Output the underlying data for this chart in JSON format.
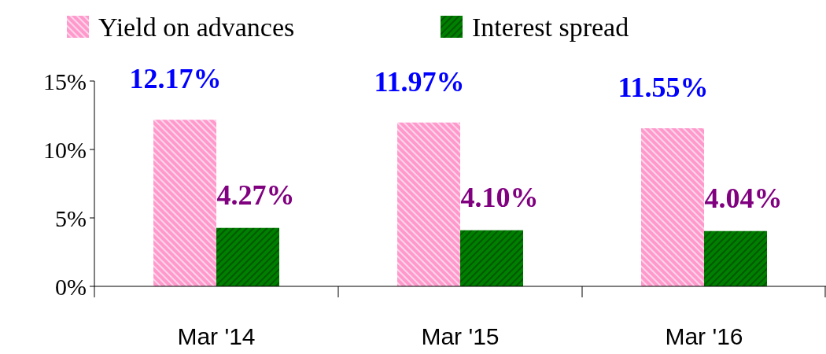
{
  "chart_data": {
    "type": "bar",
    "categories": [
      "Mar '14",
      "Mar '15",
      "Mar '16"
    ],
    "series": [
      {
        "name": "Yield on advances",
        "color": "#ff99cc",
        "values": [
          12.17,
          11.97,
          11.55
        ],
        "value_labels": [
          "12.17%",
          "11.97%",
          "11.55%"
        ]
      },
      {
        "name": "Interest spread",
        "color": "#008000",
        "values": [
          4.27,
          4.1,
          4.04
        ],
        "value_labels": [
          "4.27%",
          "4.10%",
          "4.04%"
        ]
      }
    ],
    "ylim": [
      0,
      15
    ],
    "yticks": [
      {
        "value": 0,
        "label": "0%"
      },
      {
        "value": 5,
        "label": "5%"
      },
      {
        "value": 10,
        "label": "10%"
      },
      {
        "value": 15,
        "label": "15%"
      }
    ],
    "grid": false,
    "legend": "top"
  }
}
